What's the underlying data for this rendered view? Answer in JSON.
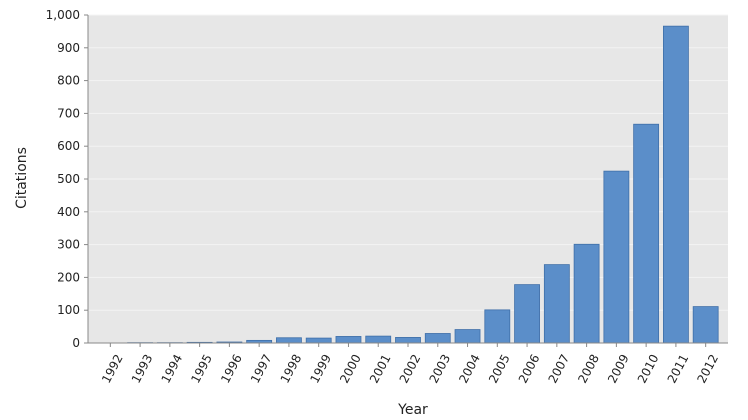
{
  "chart_data": {
    "type": "bar",
    "title": "",
    "xlabel": "Year",
    "ylabel": "Citations",
    "categories": [
      "1992",
      "1993",
      "1994",
      "1995",
      "1996",
      "1997",
      "1998",
      "1999",
      "2000",
      "2001",
      "2002",
      "2003",
      "2004",
      "2005",
      "2006",
      "2007",
      "2008",
      "2009",
      "2010",
      "2011",
      "2012"
    ],
    "values": [
      0,
      1,
      1,
      2,
      3,
      8,
      16,
      15,
      20,
      21,
      17,
      29,
      41,
      101,
      178,
      239,
      301,
      524,
      667,
      966,
      111
    ],
    "ylim": [
      0,
      1000
    ],
    "yticks": [
      "0",
      "100",
      "200",
      "300",
      "400",
      "500",
      "600",
      "700",
      "800",
      "900",
      "1,000"
    ],
    "grid": true,
    "legend": "none",
    "colors": {
      "bar": "#5b8ec9",
      "bar_edge": "#3f6fa8",
      "plot_background": "#e7e7e7",
      "grid": "#f4f4f4",
      "axis": "#888888"
    }
  }
}
